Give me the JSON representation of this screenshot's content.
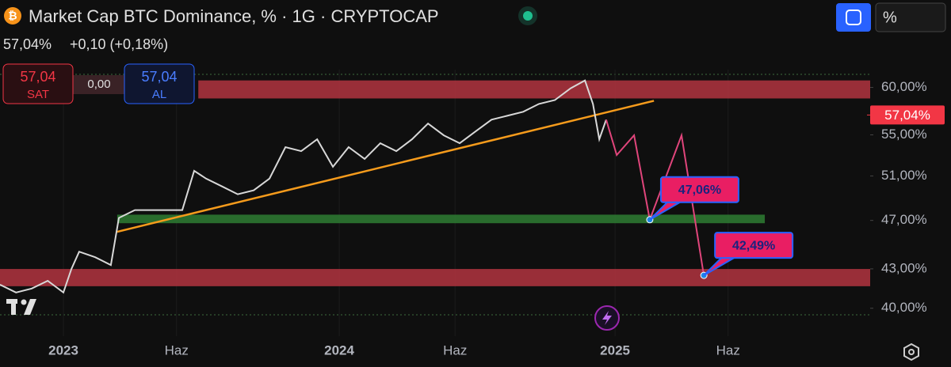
{
  "header": {
    "title": "Market Cap BTC Dominance, % · 1G · CRYPTOCAP",
    "price": "57,04%",
    "change": "+0,10 (+0,18%)",
    "sell_price": "57,04",
    "sell_label": "SAT",
    "spread": "0,00",
    "buy_price": "57,04",
    "buy_label": "AL",
    "scale_button": "%"
  },
  "chart_data": {
    "type": "line",
    "log_scale": true,
    "grid": false,
    "xlim": [
      2022.77,
      2025.925
    ],
    "ylim": [
      38,
      62
    ],
    "xticks": [
      {
        "value": 2023,
        "label": "2023"
      },
      {
        "value": 2023.41,
        "label": "Haz"
      },
      {
        "value": 2024,
        "label": "2024"
      },
      {
        "value": 2024.42,
        "label": "Haz"
      },
      {
        "value": 2025,
        "label": "2025"
      },
      {
        "value": 2025.41,
        "label": "Haz"
      }
    ],
    "yticks": [
      {
        "value": 60,
        "label": "60,00%"
      },
      {
        "value": 55,
        "label": "55,00%"
      },
      {
        "value": 51,
        "label": "51,00%"
      },
      {
        "value": 47,
        "label": "47,00%"
      },
      {
        "value": 43,
        "label": "43,00%"
      },
      {
        "value": 40,
        "label": "40,00%"
      }
    ],
    "last_price": {
      "value": 57.04,
      "label": "57,04%"
    },
    "series": [
      {
        "color": "#d8d8d8",
        "x": [
          2022.77,
          2022.828,
          2022.885,
          2022.943,
          2023.0,
          2023.029,
          2023.057,
          2023.115,
          2023.172,
          2023.201,
          2023.259,
          2023.345,
          2023.431,
          2023.474,
          2023.517,
          2023.575,
          2023.632,
          2023.69,
          2023.747,
          2023.805,
          2023.862,
          2023.92,
          2023.977,
          2024.034,
          2024.092,
          2024.149,
          2024.207,
          2024.264,
          2024.322,
          2024.379,
          2024.437,
          2024.494,
          2024.552,
          2024.609,
          2024.667,
          2024.724,
          2024.782,
          2024.839,
          2024.891,
          2024.92,
          2024.943,
          2024.968
        ],
        "values": [
          41.77,
          41.17,
          41.47,
          42.07,
          41.17,
          42.99,
          44.38,
          43.93,
          43.3,
          47.22,
          47.9,
          47.9,
          47.9,
          51.49,
          50.75,
          50.03,
          49.31,
          49.67,
          50.75,
          53.77,
          53.38,
          54.55,
          51.86,
          53.77,
          52.62,
          54.16,
          53.38,
          54.55,
          56.15,
          54.95,
          54.16,
          55.34,
          56.55,
          56.96,
          57.38,
          58.21,
          58.63,
          59.91,
          60.78,
          58.21,
          54.55,
          56.55
        ]
      },
      {
        "color": "#e0457b",
        "x": [
          2024.968,
          2025.006,
          2025.069,
          2025.126,
          2025.241,
          2025.322
        ],
        "values": [
          56.55,
          53.0,
          54.95,
          47.06,
          54.95,
          42.49
        ],
        "value_labels": [
          null,
          null,
          null,
          "47,06%",
          null,
          "42,49%"
        ]
      }
    ],
    "zones": [
      {
        "from": 58.8,
        "to": 60.78,
        "x": [
          2023.489,
          2025.925
        ],
        "color": "#b2343f"
      },
      {
        "from": 41.65,
        "to": 42.99,
        "x": [
          2022.77,
          2025.925
        ],
        "color": "#b2343f"
      },
      {
        "from": 46.76,
        "to": 47.5,
        "x": [
          2023.195,
          2025.543
        ],
        "color": "#2e7d32"
      }
    ],
    "trendline": {
      "x": [
        2023.195,
        2025.141
      ],
      "values": [
        46.03,
        58.55
      ],
      "color": "#f59b1c"
    }
  }
}
